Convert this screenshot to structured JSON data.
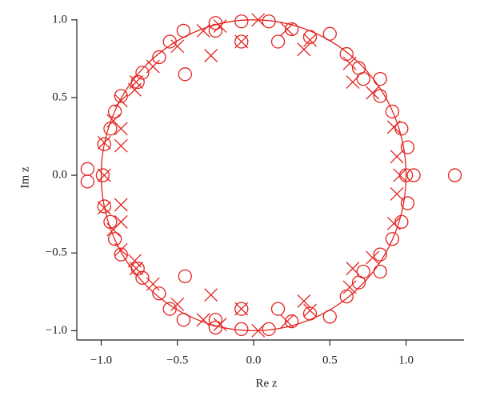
{
  "chart_data": {
    "type": "scatter",
    "xlabel": "Re z",
    "ylabel": "Im z",
    "xlim": [
      -1.16,
      1.38
    ],
    "ylim": [
      -1.06,
      1.03
    ],
    "xticks": [
      {
        "value": -1.0,
        "label": "−1.0"
      },
      {
        "value": -0.5,
        "label": "−0.5"
      },
      {
        "value": 0.0,
        "label": "0.0"
      },
      0.5,
      {
        "value": 1.0,
        "label": "1.0"
      }
    ],
    "yticks": [
      {
        "value": -1.0,
        "label": "−1.0"
      },
      {
        "value": -0.5,
        "label": "−0.5"
      },
      {
        "value": 0.0,
        "label": "0.0"
      },
      0.5,
      {
        "value": 1.0,
        "label": "1.0"
      }
    ],
    "circle_color": "#e3231f",
    "series": [
      {
        "marker": "circle",
        "color": "#e3231f",
        "x": [
          -1.09,
          -0.98,
          -0.94,
          -0.91,
          -0.87,
          -0.76,
          -0.73,
          -0.62,
          -0.55,
          -0.45,
          -0.46,
          -0.25,
          -0.25,
          -0.08,
          -0.08,
          0.1,
          0.16,
          0.25,
          0.37,
          0.5,
          0.61,
          0.69,
          0.72,
          0.83,
          0.83,
          0.91,
          0.97,
          1.01,
          -1.09,
          -0.98,
          -0.94,
          -0.91,
          -0.87,
          -0.76,
          -0.73,
          -0.62,
          -0.55,
          -0.45,
          -0.46,
          -0.25,
          -0.25,
          -0.08,
          -0.08,
          0.1,
          0.16,
          0.25,
          0.37,
          0.5,
          0.61,
          0.69,
          0.72,
          0.83,
          0.83,
          0.91,
          0.97,
          1.01,
          -0.99,
          1.0,
          1.05,
          1.32
        ],
        "y": [
          0.04,
          0.2,
          0.3,
          0.41,
          0.51,
          0.6,
          0.66,
          0.76,
          0.86,
          0.65,
          0.93,
          0.98,
          0.93,
          0.86,
          0.99,
          0.99,
          0.86,
          0.94,
          0.89,
          0.91,
          0.78,
          0.69,
          0.62,
          0.62,
          0.51,
          0.41,
          0.3,
          0.18,
          -0.04,
          -0.2,
          -0.3,
          -0.41,
          -0.51,
          -0.6,
          -0.66,
          -0.76,
          -0.86,
          -0.65,
          -0.93,
          -0.98,
          -0.93,
          -0.86,
          -0.99,
          -0.99,
          -0.86,
          -0.94,
          -0.89,
          -0.91,
          -0.78,
          -0.69,
          -0.62,
          -0.62,
          -0.51,
          -0.41,
          -0.3,
          -0.18,
          0,
          0,
          0,
          0
        ]
      },
      {
        "marker": "cross",
        "color": "#e3231f",
        "x": [
          -0.98,
          -0.87,
          -0.87,
          -0.92,
          -0.87,
          -0.78,
          -0.77,
          -0.66,
          -0.5,
          -0.28,
          -0.33,
          -0.22,
          -0.08,
          0.03,
          0.22,
          0.33,
          0.37,
          0.63,
          0.65,
          0.78,
          0.92,
          0.94,
          -0.98,
          -0.87,
          -0.87,
          -0.92,
          -0.87,
          -0.78,
          -0.77,
          -0.66,
          -0.5,
          -0.28,
          -0.33,
          -0.22,
          -0.08,
          0.03,
          0.22,
          0.33,
          0.37,
          0.63,
          0.65,
          0.78,
          0.92,
          0.94,
          -0.98,
          0.96
        ],
        "y": [
          0.21,
          0.19,
          0.3,
          0.35,
          0.48,
          0.55,
          0.6,
          0.7,
          0.83,
          0.77,
          0.93,
          0.96,
          0.86,
          1.0,
          0.94,
          0.81,
          0.87,
          0.72,
          0.6,
          0.53,
          0.31,
          0.12,
          -0.21,
          -0.19,
          -0.3,
          -0.35,
          -0.48,
          -0.55,
          -0.6,
          -0.7,
          -0.83,
          -0.77,
          -0.93,
          -0.96,
          -0.86,
          -1.0,
          -0.94,
          -0.81,
          -0.87,
          -0.72,
          -0.6,
          -0.53,
          -0.31,
          -0.12,
          0,
          0
        ]
      }
    ]
  }
}
